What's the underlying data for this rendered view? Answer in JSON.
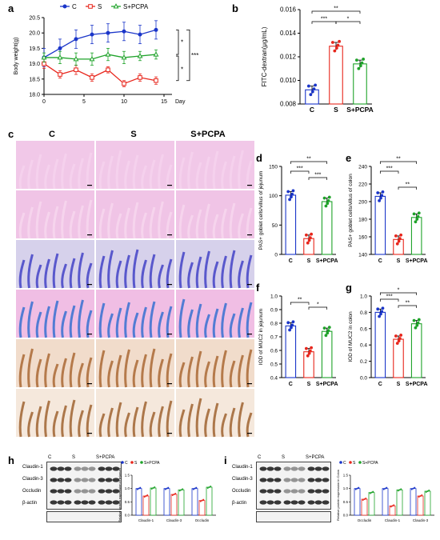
{
  "panels": {
    "a": "a",
    "b": "b",
    "c": "c",
    "d": "d",
    "e": "e",
    "f": "f",
    "g": "g",
    "h": "h",
    "i": "i"
  },
  "histology": {
    "columns": [
      "C",
      "S",
      "S+PCPA"
    ]
  },
  "western": {
    "h": {
      "columns": [
        "C",
        "S",
        "S+PCPA"
      ],
      "rows": [
        "Claudin-1",
        "Claudin-3",
        "Occludin",
        "β-actin"
      ]
    },
    "i": {
      "columns": [
        "C",
        "S",
        "S+PCPA"
      ],
      "rows": [
        "Claudin-1",
        "Claudin-3",
        "Occludin",
        "β-actin"
      ]
    }
  },
  "colors": {
    "C": "#1a35c9",
    "S": "#e8261c",
    "S+PCPA": "#1fa32a"
  },
  "chart_data": [
    {
      "id": "a",
      "type": "line",
      "xlabel": "Day",
      "ylabel": "Body weight(g)",
      "legend": [
        "C",
        "S",
        "S+PCPA"
      ],
      "legend_position": "top",
      "xlim": [
        0,
        16
      ],
      "ylim": [
        18.0,
        20.5
      ],
      "xticks": [
        "0",
        "5",
        "10",
        "15"
      ],
      "yticks": [
        "18.0",
        "18.5",
        "19.0",
        "19.5",
        "20.0",
        "20.5"
      ],
      "x": [
        0,
        2,
        4,
        6,
        8,
        10,
        12,
        14
      ],
      "series": [
        {
          "name": "C",
          "values": [
            19.2,
            19.5,
            19.8,
            19.95,
            20.0,
            20.05,
            19.95,
            20.1
          ],
          "err": [
            0.3,
            0.3,
            0.3,
            0.3,
            0.3,
            0.3,
            0.3,
            0.3
          ]
        },
        {
          "name": "S",
          "values": [
            19.0,
            18.65,
            18.8,
            18.55,
            18.8,
            18.35,
            18.55,
            18.45
          ],
          "err": [
            0.15,
            0.12,
            0.15,
            0.12,
            0.1,
            0.1,
            0.12,
            0.12
          ]
        },
        {
          "name": "S+PCPA",
          "values": [
            19.2,
            19.2,
            19.15,
            19.15,
            19.3,
            19.2,
            19.25,
            19.3
          ],
          "err": [
            0.15,
            0.2,
            0.2,
            0.2,
            0.2,
            0.2,
            0.15,
            0.15
          ]
        }
      ],
      "significance": [
        "*",
        "*",
        "***"
      ]
    },
    {
      "id": "b",
      "type": "bar",
      "ylabel": "FITC-dextran(μg/mL)",
      "categories": [
        "C",
        "S",
        "S+PCPA"
      ],
      "values": [
        0.0092,
        0.0129,
        0.0114
      ],
      "ylim": [
        0.008,
        0.016
      ],
      "yticks": [
        "0.008",
        "0.010",
        "0.012",
        "0.014",
        "0.016"
      ],
      "significance": [
        "**",
        "***",
        "*"
      ]
    },
    {
      "id": "d",
      "type": "bar",
      "ylabel": "PAS+ goblet cells/villus of jejunum",
      "categories": [
        "C",
        "S",
        "S+PCPA"
      ],
      "values": [
        101,
        27,
        90
      ],
      "ylim": [
        0,
        150
      ],
      "yticks": [
        "0",
        "50",
        "100",
        "150"
      ],
      "significance": [
        "**",
        "***",
        "***"
      ]
    },
    {
      "id": "e",
      "type": "bar",
      "ylabel": "PAS+ goblet cells/villus of colon",
      "categories": [
        "C",
        "S",
        "S+PCPA"
      ],
      "values": [
        206,
        157,
        182
      ],
      "ylim": [
        140,
        240
      ],
      "yticks": [
        "140",
        "160",
        "180",
        "200",
        "220",
        "240"
      ],
      "significance": [
        "**",
        "***",
        "**"
      ]
    },
    {
      "id": "f",
      "type": "bar",
      "ylabel": "IOD of MUC2 in jejunum",
      "categories": [
        "C",
        "S",
        "S+PCPA"
      ],
      "values": [
        0.78,
        0.59,
        0.74
      ],
      "ylim": [
        0.4,
        1.0
      ],
      "yticks": [
        "0.4",
        "0.5",
        "0.6",
        "0.7",
        "0.8",
        "0.9",
        "1.0"
      ],
      "significance": [
        "**",
        "*"
      ]
    },
    {
      "id": "g",
      "type": "bar",
      "ylabel": "IOD of MUC2 in colon",
      "categories": [
        "C",
        "S",
        "S+PCPA"
      ],
      "values": [
        0.8,
        0.47,
        0.66
      ],
      "ylim": [
        0.0,
        1.0
      ],
      "yticks": [
        "0.0",
        "0.2",
        "0.4",
        "0.6",
        "0.8",
        "1.0"
      ],
      "significance": [
        "*",
        "***",
        "**"
      ]
    },
    {
      "id": "h",
      "type": "bar",
      "ylabel": "Relative protein expression in jejunum",
      "legend": [
        "C",
        "S",
        "S+PCPA"
      ],
      "categories": [
        "Claudin-1",
        "Claudin-3",
        "Occludin"
      ],
      "series": [
        {
          "name": "C",
          "values": [
            1.0,
            1.0,
            1.0
          ]
        },
        {
          "name": "S",
          "values": [
            0.72,
            0.78,
            0.55
          ]
        },
        {
          "name": "S+PCPA",
          "values": [
            1.02,
            0.95,
            1.05
          ]
        }
      ],
      "ylim": [
        0.0,
        1.5
      ],
      "yticks": [
        "0.0",
        "0.5",
        "1.0",
        "1.5"
      ]
    },
    {
      "id": "i",
      "type": "bar",
      "ylabel": "Relative protein expression in Colon",
      "legend": [
        "C",
        "S",
        "S+PCPA"
      ],
      "categories": [
        "Occludin",
        "Claudin-1",
        "Claudin-3"
      ],
      "series": [
        {
          "name": "C",
          "values": [
            1.0,
            1.0,
            1.0
          ]
        },
        {
          "name": "S",
          "values": [
            0.6,
            0.35,
            0.72
          ]
        },
        {
          "name": "S+PCPA",
          "values": [
            0.85,
            0.95,
            0.9
          ]
        }
      ],
      "ylim": [
        0.0,
        1.5
      ],
      "yticks": [
        "0.0",
        "0.5",
        "1.0",
        "1.5"
      ]
    }
  ]
}
